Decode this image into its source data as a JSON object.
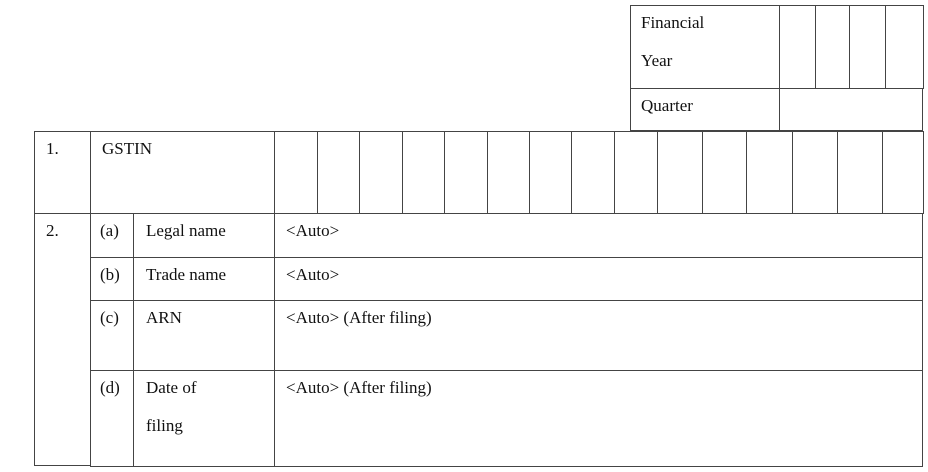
{
  "period": {
    "financial_year_label": "Financial Year",
    "financial_year_line1": "Financial",
    "financial_year_line2": "Year",
    "quarter_label": "Quarter"
  },
  "rows": [
    {
      "number": "1.",
      "label": "GSTIN"
    },
    {
      "number": "2.",
      "items": [
        {
          "letter": "(a)",
          "label": "Legal name",
          "value": "<Auto>"
        },
        {
          "letter": "(b)",
          "label": "Trade name",
          "value": "<Auto>"
        },
        {
          "letter": "(c)",
          "label": "ARN",
          "value": "<Auto> (After filing)"
        },
        {
          "letter": "(d)",
          "label_line1": "Date of",
          "label_line2": "filing",
          "value": "<Auto> (After filing)"
        }
      ]
    }
  ]
}
